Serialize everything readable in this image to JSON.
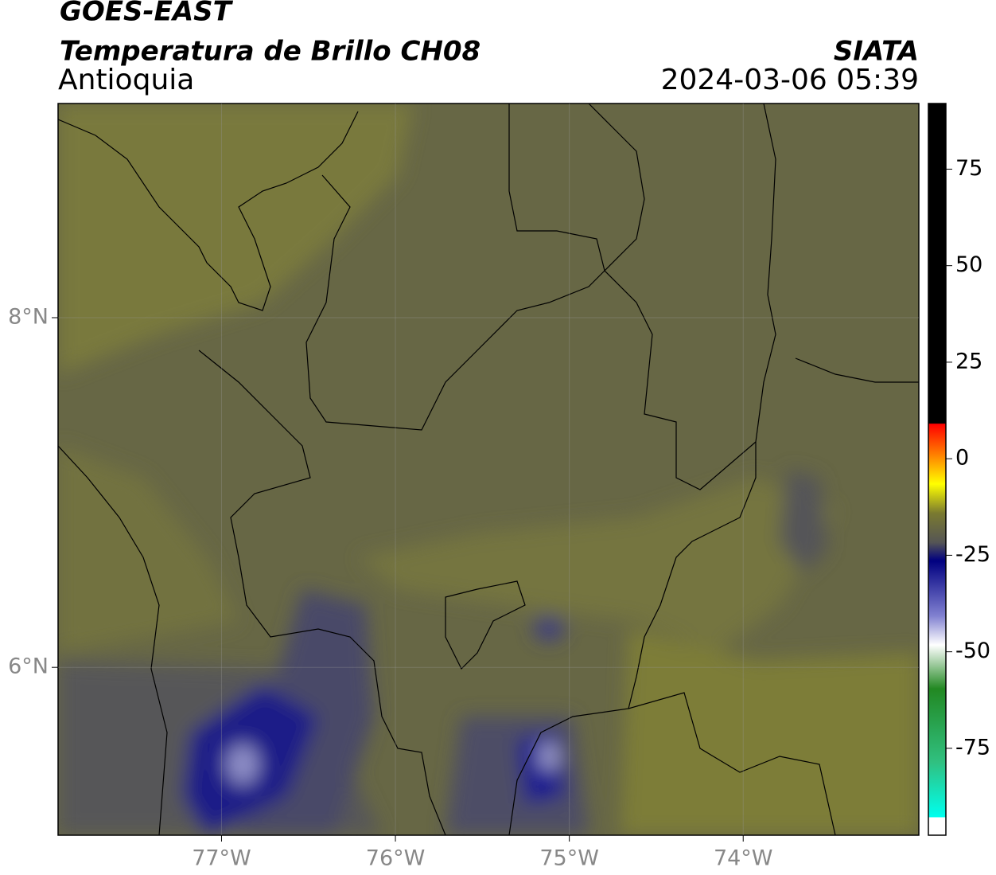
{
  "header": {
    "title": "GOES-EAST",
    "subtitle": "Temperatura de Brillo CH08",
    "region": "Antioquia",
    "source": "SIATA",
    "datetime": "2024-03-06 05:39"
  },
  "map": {
    "xlim": [
      -77.94,
      -72.99
    ],
    "ylim": [
      5.04,
      9.225
    ],
    "xticks": [
      {
        "value": -77,
        "label": "77°W"
      },
      {
        "value": -76,
        "label": "76°W"
      },
      {
        "value": -75,
        "label": "75°W"
      },
      {
        "value": -74,
        "label": "74°W"
      }
    ],
    "yticks": [
      {
        "value": 6,
        "label": "6°N"
      },
      {
        "value": 8,
        "label": "8°N"
      }
    ],
    "grid": true
  },
  "colorbar": {
    "lim": [
      -97.5,
      92
    ],
    "ticks": [
      75,
      50,
      25,
      0,
      -25,
      -50,
      -75
    ]
  }
}
